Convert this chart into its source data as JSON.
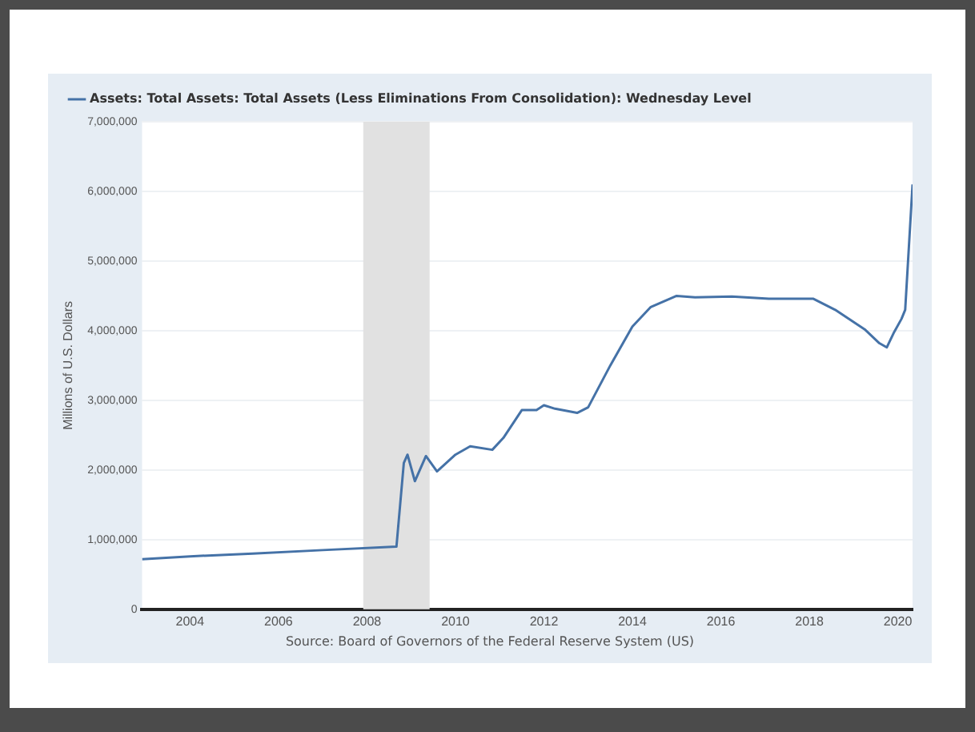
{
  "chart_data": {
    "type": "line",
    "ylabel": "Millions of U.S. Dollars",
    "annotations": [
      "Source: Board of Governors of the Federal Reserve System (US)"
    ],
    "x": [
      "2002-12",
      "2004-01",
      "2005-06",
      "2007-01",
      "2008-09",
      "2008-10",
      "2008-11",
      "2008-12",
      "2009-02",
      "2009-05",
      "2009-08",
      "2010-01",
      "2010-05",
      "2010-11",
      "2011-02",
      "2011-07",
      "2011-11",
      "2012-01",
      "2012-04",
      "2012-10",
      "2013-01",
      "2013-07",
      "2014-01",
      "2014-06",
      "2015-01",
      "2015-06",
      "2016-04",
      "2017-02",
      "2018-02",
      "2018-08",
      "2019-04",
      "2019-08",
      "2019-10",
      "2019-12",
      "2020-02",
      "2020-03",
      "2020-05"
    ],
    "series": [
      {
        "name": "Assets: Total Assets: Total Assets (Less Eliminations From Consolidation): Wednesday Level",
        "color": "#4572a7",
        "values": [
          720000,
          760000,
          800000,
          850000,
          900000,
          1500000,
          2100000,
          2220000,
          1840000,
          2200000,
          1980000,
          2220000,
          2340000,
          2290000,
          2460000,
          2860000,
          2860000,
          2930000,
          2880000,
          2820000,
          2900000,
          3500000,
          4060000,
          4340000,
          4500000,
          4480000,
          4490000,
          4460000,
          4460000,
          4300000,
          4020000,
          3820000,
          3760000,
          3980000,
          4170000,
          4300000,
          6100000
        ]
      }
    ],
    "xlim": [
      "2002-12",
      "2020-05"
    ],
    "xticks": [
      "2004",
      "2006",
      "2008",
      "2010",
      "2012",
      "2014",
      "2016",
      "2018",
      "2020"
    ],
    "ylim": [
      0,
      7000000
    ],
    "yticks": [
      0,
      {
        "value": 1000000,
        "label": "1,000,000"
      },
      {
        "value": 2000000,
        "label": "2,000,000"
      },
      {
        "value": 3000000,
        "label": "3,000,000"
      },
      {
        "value": 4000000,
        "label": "4,000,000"
      },
      {
        "value": 5000000,
        "label": "5,000,000"
      },
      {
        "value": 6000000,
        "label": "6,000,000"
      },
      {
        "value": 7000000,
        "label": "7,000,000"
      }
    ],
    "bands": [
      {
        "axis": "x",
        "from": "2007-12",
        "to": "2009-06",
        "color": "#e1e1e1"
      }
    ],
    "grid": "y",
    "legend": "top left",
    "marker": "none",
    "line_style": "solid"
  }
}
